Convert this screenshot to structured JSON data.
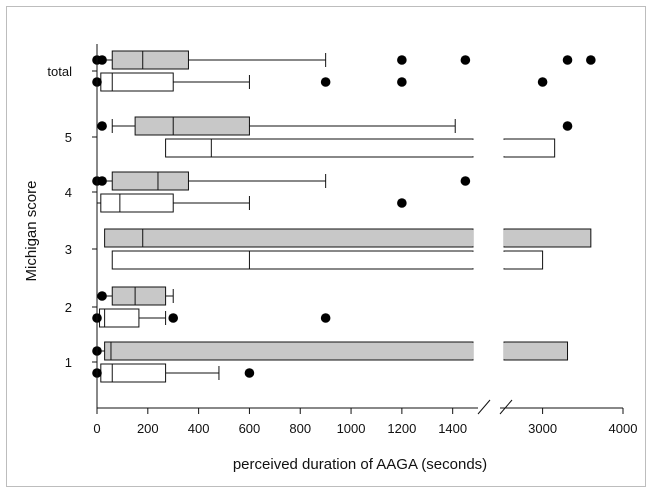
{
  "chart_data": {
    "type": "boxplot",
    "xlabel": "perceived duration of AAGA (seconds)",
    "ylabel": "Michigan score",
    "x_axis": {
      "broken": true,
      "segments": [
        {
          "range": [
            0,
            1480
          ],
          "ticks": [
            0,
            200,
            400,
            600,
            800,
            1000,
            1200,
            1400
          ]
        },
        {
          "range": [
            2520,
            4000
          ],
          "ticks": [
            3000,
            4000
          ]
        }
      ]
    },
    "categories": [
      "1",
      "2",
      "3",
      "4",
      "5",
      "total"
    ],
    "category_labels": {
      "1": "1",
      "2": "2",
      "3": "3",
      "4": "4",
      "5": "5",
      "total": "total"
    },
    "series": [
      {
        "style": "gray",
        "fill": "#c8c8c8",
        "boxes": [
          {
            "category": "1",
            "whisker_low": 0,
            "q1": 30,
            "median": 55,
            "q3": 3310,
            "whisker_high": 3310,
            "outliers": [
              0
            ]
          },
          {
            "category": "2",
            "whisker_low": 0,
            "q1": 60,
            "median": 150,
            "q3": 270,
            "whisker_high": 300,
            "outliers": [
              20
            ]
          },
          {
            "category": "3",
            "whisker_low": 30,
            "q1": 30,
            "median": 180,
            "q3": 3600,
            "whisker_high": 3600,
            "outliers": []
          },
          {
            "category": "4",
            "whisker_low": 0,
            "q1": 60,
            "median": 240,
            "q3": 360,
            "whisker_high": 900,
            "outliers": [
              0,
              20,
              1450
            ]
          },
          {
            "category": "5",
            "whisker_low": 60,
            "q1": 150,
            "median": 300,
            "q3": 600,
            "whisker_high": 1410,
            "outliers": [
              20,
              3310
            ]
          },
          {
            "category": "total",
            "whisker_low": 0,
            "q1": 60,
            "median": 180,
            "q3": 360,
            "whisker_high": 900,
            "outliers": [
              0,
              20,
              1200,
              1450,
              3310,
              3600
            ]
          }
        ]
      },
      {
        "style": "white",
        "fill": "#ffffff",
        "boxes": [
          {
            "category": "1",
            "whisker_low": 0,
            "q1": 15,
            "median": 60,
            "q3": 270,
            "whisker_high": 480,
            "outliers": [
              0,
              600
            ]
          },
          {
            "category": "2",
            "whisker_low": 0,
            "q1": 10,
            "median": 30,
            "q3": 165,
            "whisker_high": 270,
            "outliers": [
              0,
              300,
              900
            ]
          },
          {
            "category": "3",
            "whisker_low": 60,
            "q1": 60,
            "median": 600,
            "q3": 3000,
            "whisker_high": 3000,
            "outliers": []
          },
          {
            "category": "4",
            "whisker_low": 0,
            "q1": 15,
            "median": 90,
            "q3": 300,
            "whisker_high": 600,
            "outliers": [
              1200
            ]
          },
          {
            "category": "5",
            "whisker_low": 270,
            "q1": 270,
            "median": 450,
            "q3": 3150,
            "whisker_high": 3150,
            "outliers": []
          },
          {
            "category": "total",
            "whisker_low": 0,
            "q1": 15,
            "median": 60,
            "q3": 300,
            "whisker_high": 600,
            "outliers": [
              0,
              900,
              1200,
              3000
            ]
          }
        ]
      }
    ],
    "grid": false,
    "legend": "none"
  }
}
